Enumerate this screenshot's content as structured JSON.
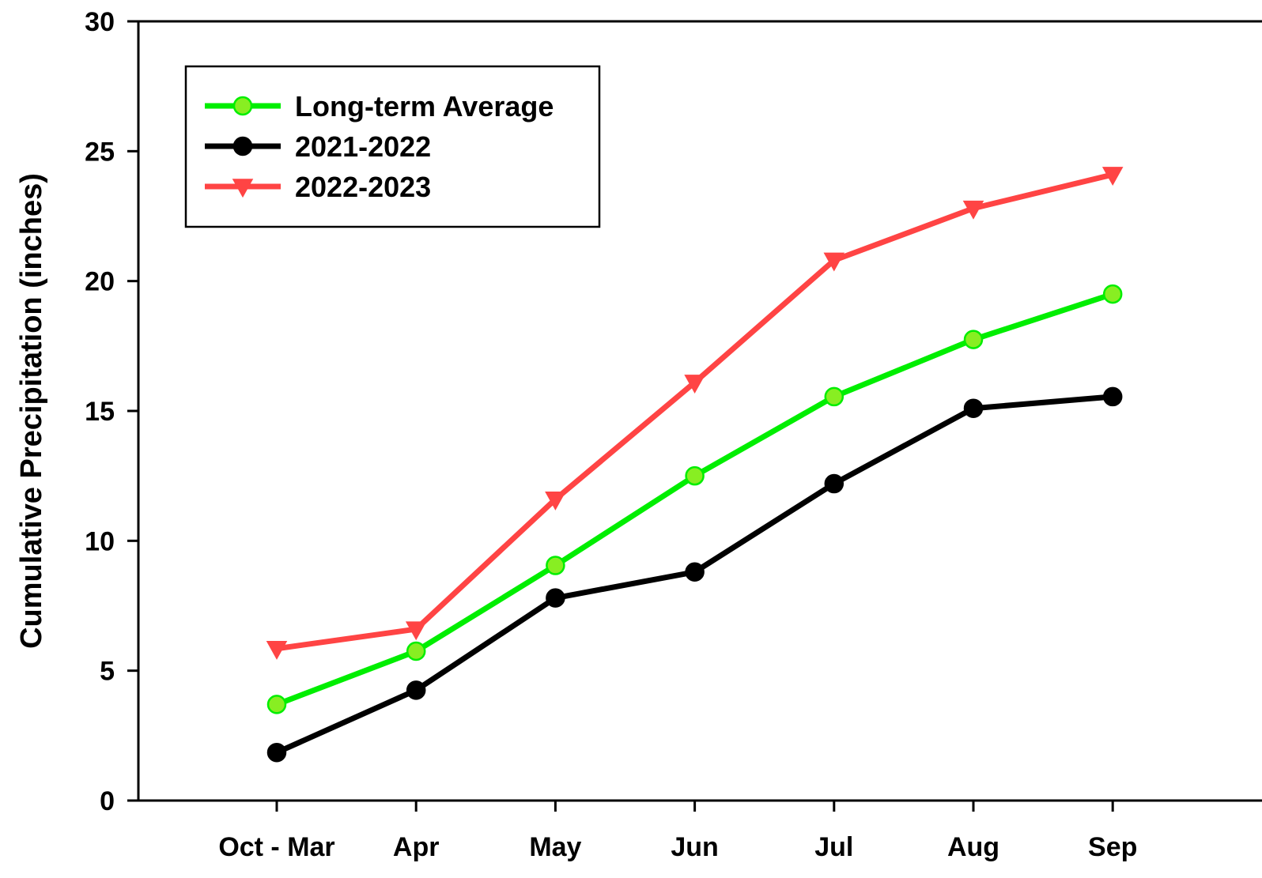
{
  "chart_data": {
    "type": "line",
    "title": "",
    "xlabel": "",
    "ylabel": "Cumulative Precipitation (inches)",
    "categories": [
      "Oct - Mar",
      "Apr",
      "May",
      "Jun",
      "Jul",
      "Aug",
      "Sep"
    ],
    "ylim": [
      0,
      30
    ],
    "yticks": [
      0,
      5,
      10,
      15,
      20,
      25,
      30
    ],
    "grid": false,
    "legend_position": "top-left",
    "series": [
      {
        "name": "Long-term Average",
        "color": "#00ee00",
        "marker": "circle",
        "marker_fill": "#88ee22",
        "values": [
          3.7,
          5.75,
          9.05,
          12.5,
          15.55,
          17.75,
          19.5
        ]
      },
      {
        "name": "2021-2022",
        "color": "#000000",
        "marker": "circle",
        "marker_fill": "#000000",
        "values": [
          1.85,
          4.25,
          7.8,
          8.8,
          12.2,
          15.1,
          15.55
        ]
      },
      {
        "name": "2022-2023",
        "color": "#ff4444",
        "marker": "triangle-down",
        "marker_fill": "#ff4444",
        "values": [
          5.85,
          6.6,
          11.6,
          16.1,
          20.8,
          22.8,
          24.1
        ]
      }
    ]
  }
}
